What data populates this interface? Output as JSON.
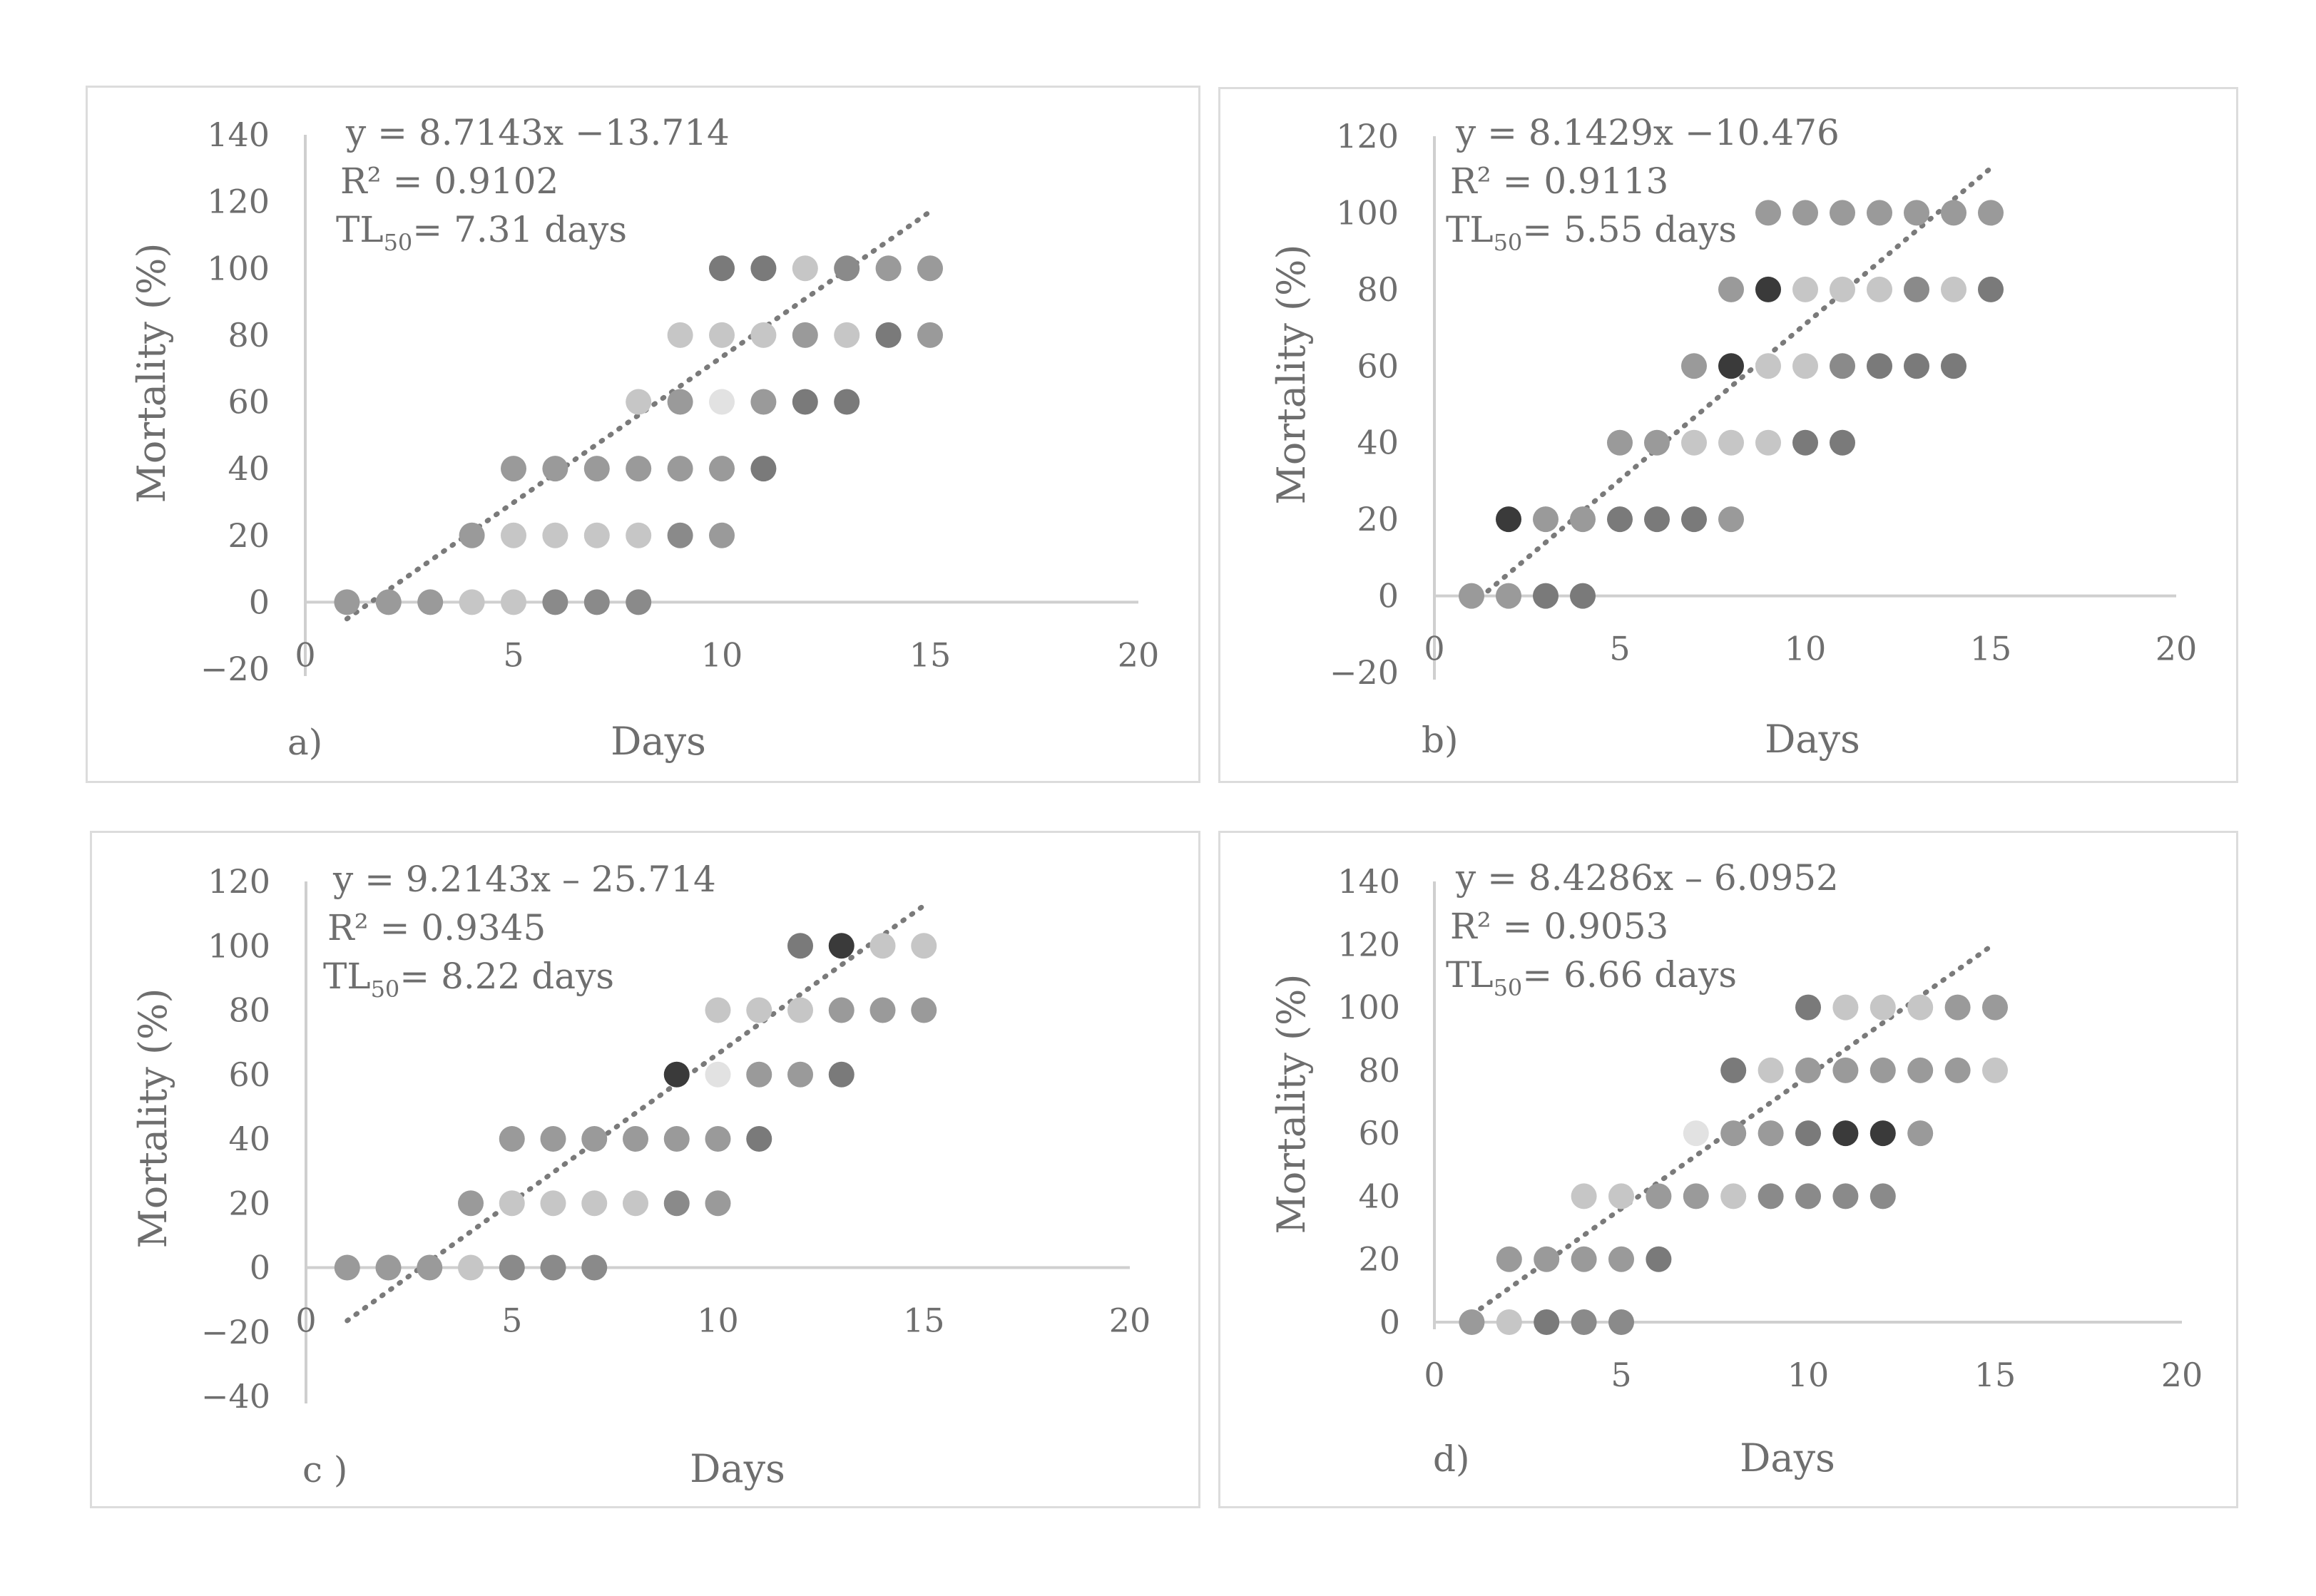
{
  "chart_data": [
    {
      "type": "scatter",
      "panel_label": "a)",
      "xlabel": "Days",
      "ylabel": "Mortality (%)",
      "xlim": [
        0,
        20
      ],
      "ylim": [
        -20,
        140
      ],
      "xticks": [
        "0",
        "5",
        "10",
        "15",
        "20"
      ],
      "yticks": [
        "−20",
        "0",
        "20",
        "40",
        "60",
        "80",
        "100",
        "120",
        "140"
      ],
      "annotation": {
        "equation": "y = 8.7143x −13.714",
        "r2": "R² = 0.9102",
        "tl50_prefix": "TL",
        "tl50_sub": "50",
        "tl50_value": "= 7.31 days"
      },
      "trendline": {
        "slope": 8.7143,
        "intercept": -13.714,
        "x_range": [
          1,
          15
        ]
      },
      "points": [
        {
          "x": 1,
          "y": 0,
          "color": "#9a9a9a"
        },
        {
          "x": 2,
          "y": 0,
          "color": "#9a9a9a"
        },
        {
          "x": 3,
          "y": 0,
          "color": "#9a9a9a"
        },
        {
          "x": 4,
          "y": 0,
          "color": "#c6c6c6"
        },
        {
          "x": 5,
          "y": 0,
          "color": "#c6c6c6"
        },
        {
          "x": 6,
          "y": 0,
          "color": "#8a8a8a"
        },
        {
          "x": 7,
          "y": 0,
          "color": "#8a8a8a"
        },
        {
          "x": 8,
          "y": 0,
          "color": "#8a8a8a"
        },
        {
          "x": 4,
          "y": 20,
          "color": "#9a9a9a"
        },
        {
          "x": 5,
          "y": 20,
          "color": "#c6c6c6"
        },
        {
          "x": 6,
          "y": 20,
          "color": "#c6c6c6"
        },
        {
          "x": 7,
          "y": 20,
          "color": "#c6c6c6"
        },
        {
          "x": 8,
          "y": 20,
          "color": "#c6c6c6"
        },
        {
          "x": 9,
          "y": 20,
          "color": "#8a8a8a"
        },
        {
          "x": 10,
          "y": 20,
          "color": "#9a9a9a"
        },
        {
          "x": 5,
          "y": 40,
          "color": "#9a9a9a"
        },
        {
          "x": 6,
          "y": 40,
          "color": "#9a9a9a"
        },
        {
          "x": 7,
          "y": 40,
          "color": "#9a9a9a"
        },
        {
          "x": 8,
          "y": 40,
          "color": "#9a9a9a"
        },
        {
          "x": 9,
          "y": 40,
          "color": "#9a9a9a"
        },
        {
          "x": 10,
          "y": 40,
          "color": "#9a9a9a"
        },
        {
          "x": 11,
          "y": 40,
          "color": "#7a7a7a"
        },
        {
          "x": 8,
          "y": 60,
          "color": "#c6c6c6"
        },
        {
          "x": 9,
          "y": 60,
          "color": "#9a9a9a"
        },
        {
          "x": 10,
          "y": 60,
          "color": "#e2e2e2"
        },
        {
          "x": 11,
          "y": 60,
          "color": "#9a9a9a"
        },
        {
          "x": 12,
          "y": 60,
          "color": "#7a7a7a"
        },
        {
          "x": 13,
          "y": 60,
          "color": "#7a7a7a"
        },
        {
          "x": 9,
          "y": 80,
          "color": "#c6c6c6"
        },
        {
          "x": 10,
          "y": 80,
          "color": "#c6c6c6"
        },
        {
          "x": 11,
          "y": 80,
          "color": "#c6c6c6"
        },
        {
          "x": 12,
          "y": 80,
          "color": "#9a9a9a"
        },
        {
          "x": 13,
          "y": 80,
          "color": "#c6c6c6"
        },
        {
          "x": 14,
          "y": 80,
          "color": "#7a7a7a"
        },
        {
          "x": 15,
          "y": 80,
          "color": "#9a9a9a"
        },
        {
          "x": 10,
          "y": 100,
          "color": "#7a7a7a"
        },
        {
          "x": 11,
          "y": 100,
          "color": "#7a7a7a"
        },
        {
          "x": 12,
          "y": 100,
          "color": "#c6c6c6"
        },
        {
          "x": 13,
          "y": 100,
          "color": "#8a8a8a"
        },
        {
          "x": 14,
          "y": 100,
          "color": "#9a9a9a"
        },
        {
          "x": 15,
          "y": 100,
          "color": "#9a9a9a"
        }
      ]
    },
    {
      "type": "scatter",
      "panel_label": "b)",
      "xlabel": "Days",
      "ylabel": "Mortality (%)",
      "xlim": [
        0,
        20
      ],
      "ylim": [
        -20,
        120
      ],
      "xticks": [
        "0",
        "5",
        "10",
        "15",
        "20"
      ],
      "yticks": [
        "−20",
        "0",
        "20",
        "40",
        "60",
        "80",
        "100",
        "120"
      ],
      "annotation": {
        "equation": "y = 8.1429x −10.476",
        "r2": "R² = 0.9113",
        "tl50_prefix": "TL",
        "tl50_sub": "50",
        "tl50_value": "= 5.55 days"
      },
      "trendline": {
        "slope": 8.1429,
        "intercept": -10.476,
        "x_range": [
          1,
          15
        ]
      },
      "points": [
        {
          "x": 1,
          "y": 0,
          "color": "#9a9a9a"
        },
        {
          "x": 2,
          "y": 0,
          "color": "#9a9a9a"
        },
        {
          "x": 3,
          "y": 0,
          "color": "#7a7a7a"
        },
        {
          "x": 4,
          "y": 0,
          "color": "#7a7a7a"
        },
        {
          "x": 2,
          "y": 20,
          "color": "#3a3a3a"
        },
        {
          "x": 3,
          "y": 20,
          "color": "#9a9a9a"
        },
        {
          "x": 4,
          "y": 20,
          "color": "#9a9a9a"
        },
        {
          "x": 5,
          "y": 20,
          "color": "#7a7a7a"
        },
        {
          "x": 6,
          "y": 20,
          "color": "#7a7a7a"
        },
        {
          "x": 7,
          "y": 20,
          "color": "#7a7a7a"
        },
        {
          "x": 8,
          "y": 20,
          "color": "#9a9a9a"
        },
        {
          "x": 5,
          "y": 40,
          "color": "#9a9a9a"
        },
        {
          "x": 6,
          "y": 40,
          "color": "#9a9a9a"
        },
        {
          "x": 7,
          "y": 40,
          "color": "#c6c6c6"
        },
        {
          "x": 8,
          "y": 40,
          "color": "#c6c6c6"
        },
        {
          "x": 9,
          "y": 40,
          "color": "#c6c6c6"
        },
        {
          "x": 10,
          "y": 40,
          "color": "#7a7a7a"
        },
        {
          "x": 11,
          "y": 40,
          "color": "#7a7a7a"
        },
        {
          "x": 7,
          "y": 60,
          "color": "#9a9a9a"
        },
        {
          "x": 8,
          "y": 60,
          "color": "#3a3a3a"
        },
        {
          "x": 9,
          "y": 60,
          "color": "#c6c6c6"
        },
        {
          "x": 10,
          "y": 60,
          "color": "#c6c6c6"
        },
        {
          "x": 11,
          "y": 60,
          "color": "#8a8a8a"
        },
        {
          "x": 12,
          "y": 60,
          "color": "#7a7a7a"
        },
        {
          "x": 13,
          "y": 60,
          "color": "#7a7a7a"
        },
        {
          "x": 14,
          "y": 60,
          "color": "#7a7a7a"
        },
        {
          "x": 8,
          "y": 80,
          "color": "#9a9a9a"
        },
        {
          "x": 9,
          "y": 80,
          "color": "#3a3a3a"
        },
        {
          "x": 10,
          "y": 80,
          "color": "#c6c6c6"
        },
        {
          "x": 11,
          "y": 80,
          "color": "#c6c6c6"
        },
        {
          "x": 12,
          "y": 80,
          "color": "#c6c6c6"
        },
        {
          "x": 13,
          "y": 80,
          "color": "#8a8a8a"
        },
        {
          "x": 14,
          "y": 80,
          "color": "#c6c6c6"
        },
        {
          "x": 15,
          "y": 80,
          "color": "#7a7a7a"
        },
        {
          "x": 9,
          "y": 100,
          "color": "#9a9a9a"
        },
        {
          "x": 10,
          "y": 100,
          "color": "#9a9a9a"
        },
        {
          "x": 11,
          "y": 100,
          "color": "#9a9a9a"
        },
        {
          "x": 12,
          "y": 100,
          "color": "#9a9a9a"
        },
        {
          "x": 13,
          "y": 100,
          "color": "#9a9a9a"
        },
        {
          "x": 14,
          "y": 100,
          "color": "#9a9a9a"
        },
        {
          "x": 15,
          "y": 100,
          "color": "#9a9a9a"
        }
      ]
    },
    {
      "type": "scatter",
      "panel_label": "c )",
      "xlabel": "Days",
      "ylabel": "Mortality  (%)",
      "xlim": [
        0,
        20
      ],
      "ylim": [
        -40,
        120
      ],
      "xticks": [
        "0",
        "5",
        "10",
        "15",
        "20"
      ],
      "yticks": [
        "−40",
        "−20",
        "0",
        "20",
        "40",
        "60",
        "80",
        "100",
        "120"
      ],
      "annotation": {
        "equation": "y = 9.2143x – 25.714",
        "r2": "R² = 0.9345",
        "tl50_prefix": "TL",
        "tl50_sub": "50",
        "tl50_value": "= 8.22 days"
      },
      "trendline": {
        "slope": 9.2143,
        "intercept": -25.714,
        "x_range": [
          1,
          15
        ]
      },
      "points": [
        {
          "x": 1,
          "y": 0,
          "color": "#9a9a9a"
        },
        {
          "x": 2,
          "y": 0,
          "color": "#9a9a9a"
        },
        {
          "x": 3,
          "y": 0,
          "color": "#9a9a9a"
        },
        {
          "x": 4,
          "y": 0,
          "color": "#c6c6c6"
        },
        {
          "x": 5,
          "y": 0,
          "color": "#8a8a8a"
        },
        {
          "x": 6,
          "y": 0,
          "color": "#8a8a8a"
        },
        {
          "x": 7,
          "y": 0,
          "color": "#8a8a8a"
        },
        {
          "x": 4,
          "y": 20,
          "color": "#9a9a9a"
        },
        {
          "x": 5,
          "y": 20,
          "color": "#c6c6c6"
        },
        {
          "x": 6,
          "y": 20,
          "color": "#c6c6c6"
        },
        {
          "x": 7,
          "y": 20,
          "color": "#c6c6c6"
        },
        {
          "x": 8,
          "y": 20,
          "color": "#c6c6c6"
        },
        {
          "x": 9,
          "y": 20,
          "color": "#8a8a8a"
        },
        {
          "x": 10,
          "y": 20,
          "color": "#9a9a9a"
        },
        {
          "x": 5,
          "y": 40,
          "color": "#9a9a9a"
        },
        {
          "x": 6,
          "y": 40,
          "color": "#9a9a9a"
        },
        {
          "x": 7,
          "y": 40,
          "color": "#9a9a9a"
        },
        {
          "x": 8,
          "y": 40,
          "color": "#9a9a9a"
        },
        {
          "x": 9,
          "y": 40,
          "color": "#9a9a9a"
        },
        {
          "x": 10,
          "y": 40,
          "color": "#9a9a9a"
        },
        {
          "x": 11,
          "y": 40,
          "color": "#7a7a7a"
        },
        {
          "x": 9,
          "y": 60,
          "color": "#3a3a3a"
        },
        {
          "x": 10,
          "y": 60,
          "color": "#e2e2e2"
        },
        {
          "x": 11,
          "y": 60,
          "color": "#9a9a9a"
        },
        {
          "x": 12,
          "y": 60,
          "color": "#9a9a9a"
        },
        {
          "x": 13,
          "y": 60,
          "color": "#7a7a7a"
        },
        {
          "x": 10,
          "y": 80,
          "color": "#c6c6c6"
        },
        {
          "x": 11,
          "y": 80,
          "color": "#c6c6c6"
        },
        {
          "x": 12,
          "y": 80,
          "color": "#c6c6c6"
        },
        {
          "x": 13,
          "y": 80,
          "color": "#9a9a9a"
        },
        {
          "x": 14,
          "y": 80,
          "color": "#9a9a9a"
        },
        {
          "x": 15,
          "y": 80,
          "color": "#9a9a9a"
        },
        {
          "x": 12,
          "y": 100,
          "color": "#7a7a7a"
        },
        {
          "x": 13,
          "y": 100,
          "color": "#3a3a3a"
        },
        {
          "x": 14,
          "y": 100,
          "color": "#c6c6c6"
        },
        {
          "x": 15,
          "y": 100,
          "color": "#c6c6c6"
        }
      ]
    },
    {
      "type": "scatter",
      "panel_label": "d)",
      "xlabel": "Days",
      "ylabel": "Mortality (%)",
      "xlim": [
        0,
        20
      ],
      "ylim": [
        0,
        140
      ],
      "xticks": [
        "0",
        "5",
        "10",
        "15",
        "20"
      ],
      "yticks": [
        "0",
        "20",
        "40",
        "60",
        "80",
        "100",
        "120",
        "140"
      ],
      "annotation": {
        "equation": "y = 8.4286x – 6.0952",
        "r2": "R² = 0.9053",
        "tl50_prefix": "TL",
        "tl50_sub": "50",
        "tl50_value": "= 6.66 days"
      },
      "trendline": {
        "slope": 8.4286,
        "intercept": -6.0952,
        "x_range": [
          1,
          15
        ]
      },
      "points": [
        {
          "x": 1,
          "y": 0,
          "color": "#9a9a9a"
        },
        {
          "x": 2,
          "y": 0,
          "color": "#c6c6c6"
        },
        {
          "x": 3,
          "y": 0,
          "color": "#7a7a7a"
        },
        {
          "x": 4,
          "y": 0,
          "color": "#8a8a8a"
        },
        {
          "x": 5,
          "y": 0,
          "color": "#8a8a8a"
        },
        {
          "x": 2,
          "y": 20,
          "color": "#9a9a9a"
        },
        {
          "x": 3,
          "y": 20,
          "color": "#9a9a9a"
        },
        {
          "x": 4,
          "y": 20,
          "color": "#9a9a9a"
        },
        {
          "x": 5,
          "y": 20,
          "color": "#9a9a9a"
        },
        {
          "x": 6,
          "y": 20,
          "color": "#7a7a7a"
        },
        {
          "x": 4,
          "y": 40,
          "color": "#c6c6c6"
        },
        {
          "x": 5,
          "y": 40,
          "color": "#c6c6c6"
        },
        {
          "x": 6,
          "y": 40,
          "color": "#9a9a9a"
        },
        {
          "x": 7,
          "y": 40,
          "color": "#9a9a9a"
        },
        {
          "x": 8,
          "y": 40,
          "color": "#c6c6c6"
        },
        {
          "x": 9,
          "y": 40,
          "color": "#8a8a8a"
        },
        {
          "x": 10,
          "y": 40,
          "color": "#8a8a8a"
        },
        {
          "x": 11,
          "y": 40,
          "color": "#8a8a8a"
        },
        {
          "x": 12,
          "y": 40,
          "color": "#8a8a8a"
        },
        {
          "x": 7,
          "y": 60,
          "color": "#e2e2e2"
        },
        {
          "x": 8,
          "y": 60,
          "color": "#9a9a9a"
        },
        {
          "x": 9,
          "y": 60,
          "color": "#9a9a9a"
        },
        {
          "x": 10,
          "y": 60,
          "color": "#7a7a7a"
        },
        {
          "x": 11,
          "y": 60,
          "color": "#3a3a3a"
        },
        {
          "x": 12,
          "y": 60,
          "color": "#3a3a3a"
        },
        {
          "x": 13,
          "y": 60,
          "color": "#9a9a9a"
        },
        {
          "x": 8,
          "y": 80,
          "color": "#7a7a7a"
        },
        {
          "x": 9,
          "y": 80,
          "color": "#c6c6c6"
        },
        {
          "x": 10,
          "y": 80,
          "color": "#9a9a9a"
        },
        {
          "x": 11,
          "y": 80,
          "color": "#9a9a9a"
        },
        {
          "x": 12,
          "y": 80,
          "color": "#9a9a9a"
        },
        {
          "x": 13,
          "y": 80,
          "color": "#9a9a9a"
        },
        {
          "x": 14,
          "y": 80,
          "color": "#9a9a9a"
        },
        {
          "x": 15,
          "y": 80,
          "color": "#c6c6c6"
        },
        {
          "x": 10,
          "y": 100,
          "color": "#7a7a7a"
        },
        {
          "x": 11,
          "y": 100,
          "color": "#c6c6c6"
        },
        {
          "x": 12,
          "y": 100,
          "color": "#c6c6c6"
        },
        {
          "x": 13,
          "y": 100,
          "color": "#c6c6c6"
        },
        {
          "x": 14,
          "y": 100,
          "color": "#9a9a9a"
        },
        {
          "x": 15,
          "y": 100,
          "color": "#9a9a9a"
        }
      ]
    }
  ]
}
